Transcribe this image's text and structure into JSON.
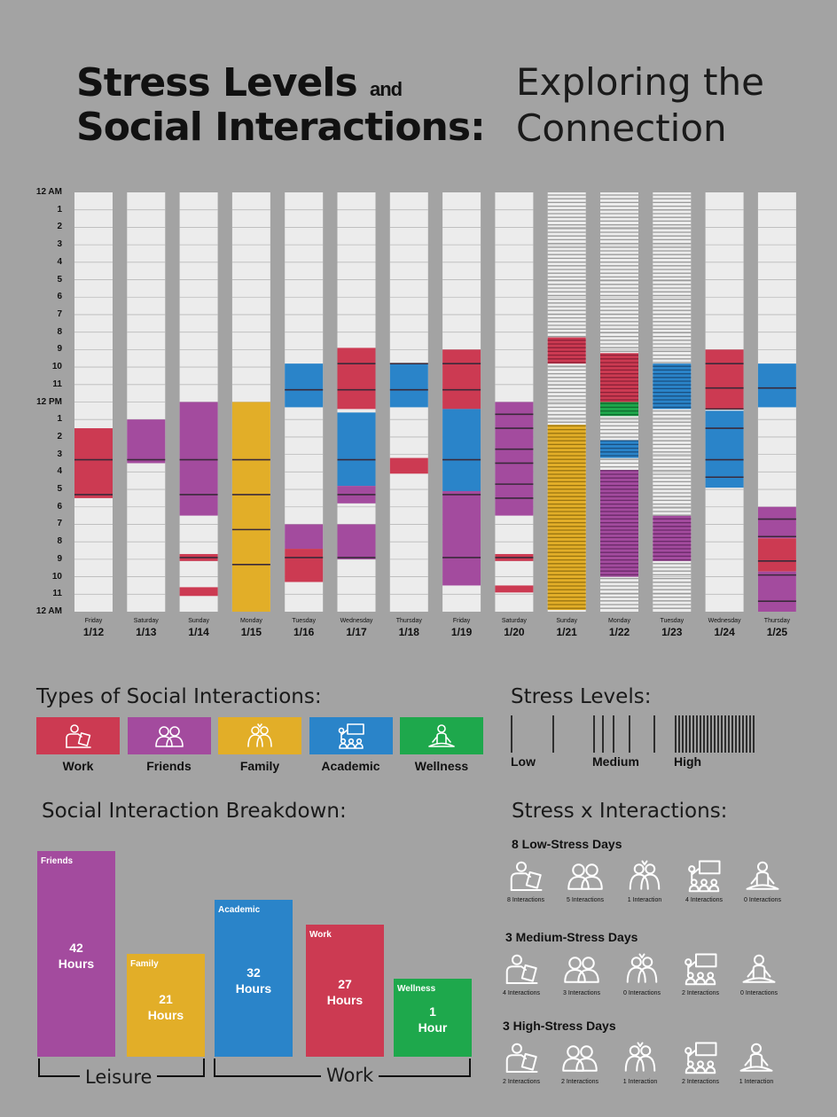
{
  "title": {
    "line1": "Stress Levels",
    "and": "and",
    "line2": "Social Interactions:",
    "sub1": "Exploring the",
    "sub2": "Connection"
  },
  "colors": {
    "work": "#cc3a52",
    "friends": "#a34b9e",
    "family": "#e2ae28",
    "academic": "#2a84c9",
    "wellness": "#1ea84c",
    "empty": "#ececec"
  },
  "chart_data": [
    {
      "type": "timeline",
      "y_tick_labels": [
        "12 AM",
        "1",
        "2",
        "3",
        "4",
        "5",
        "6",
        "7",
        "8",
        "9",
        "10",
        "11",
        "12 PM",
        "1",
        "2",
        "3",
        "4",
        "5",
        "6",
        "7",
        "8",
        "9",
        "10",
        "11",
        "12 AM"
      ],
      "days": [
        {
          "name": "Friday",
          "date": "1/12",
          "stress": "low",
          "segments": [
            {
              "type": "work",
              "start": 13.5,
              "end": 17.5
            }
          ],
          "lines": [
            15.3,
            17.3
          ]
        },
        {
          "name": "Saturday",
          "date": "1/13",
          "stress": "low",
          "segments": [
            {
              "type": "friends",
              "start": 13.0,
              "end": 15.5
            }
          ],
          "lines": [
            15.3
          ]
        },
        {
          "name": "Sunday",
          "date": "1/14",
          "stress": "low",
          "segments": [
            {
              "type": "friends",
              "start": 12.0,
              "end": 18.5
            },
            {
              "type": "work",
              "start": 20.7,
              "end": 21.1
            },
            {
              "type": "work",
              "start": 22.6,
              "end": 23.1
            }
          ],
          "lines": [
            15.3,
            17.3,
            20.9
          ]
        },
        {
          "name": "Monday",
          "date": "1/15",
          "stress": "low",
          "segments": [
            {
              "type": "family",
              "start": 12.0,
              "end": 24.0
            }
          ],
          "lines": [
            15.3,
            17.3,
            19.3,
            21.3
          ]
        },
        {
          "name": "Tuesday",
          "date": "1/16",
          "stress": "low",
          "segments": [
            {
              "type": "academic",
              "start": 9.8,
              "end": 12.3
            },
            {
              "type": "friends",
              "start": 19.0,
              "end": 20.4
            },
            {
              "type": "work",
              "start": 20.4,
              "end": 22.3
            }
          ],
          "lines": [
            11.3,
            20.9
          ]
        },
        {
          "name": "Wednesday",
          "date": "1/17",
          "stress": "low",
          "segments": [
            {
              "type": "work",
              "start": 8.9,
              "end": 12.4
            },
            {
              "type": "academic",
              "start": 12.6,
              "end": 16.8
            },
            {
              "type": "friends",
              "start": 16.8,
              "end": 17.8
            },
            {
              "type": "friends",
              "start": 19.0,
              "end": 21.0
            }
          ],
          "lines": [
            9.8,
            11.3,
            15.3,
            17.3,
            20.9
          ]
        },
        {
          "name": "Thursday",
          "date": "1/18",
          "stress": "low",
          "segments": [
            {
              "type": "academic",
              "start": 9.8,
              "end": 12.3
            },
            {
              "type": "work",
              "start": 15.2,
              "end": 16.1
            }
          ],
          "lines": [
            9.8,
            11.3
          ]
        },
        {
          "name": "Friday",
          "date": "1/19",
          "stress": "low",
          "segments": [
            {
              "type": "work",
              "start": 9.0,
              "end": 12.4
            },
            {
              "type": "academic",
              "start": 12.4,
              "end": 17.1
            },
            {
              "type": "friends",
              "start": 17.1,
              "end": 22.5
            }
          ],
          "lines": [
            9.8,
            11.3,
            15.3,
            17.3,
            20.9
          ]
        },
        {
          "name": "Saturday",
          "date": "1/20",
          "stress": "medium",
          "segments": [
            {
              "type": "friends",
              "start": 12.0,
              "end": 18.5
            },
            {
              "type": "work",
              "start": 20.7,
              "end": 21.1
            },
            {
              "type": "work",
              "start": 22.5,
              "end": 22.9
            }
          ],
          "lines": [
            12.7,
            13.5,
            14.7,
            15.5,
            16.7,
            17.5,
            20.9
          ]
        },
        {
          "name": "Sunday",
          "date": "1/21",
          "stress": "high",
          "segments": [
            {
              "type": "work",
              "start": 8.3,
              "end": 9.8
            },
            {
              "type": "family",
              "start": 13.3,
              "end": 23.9
            }
          ],
          "lines": []
        },
        {
          "name": "Monday",
          "date": "1/22",
          "stress": "high",
          "segments": [
            {
              "type": "work",
              "start": 9.2,
              "end": 12.0
            },
            {
              "type": "wellness",
              "start": 12.0,
              "end": 12.8
            },
            {
              "type": "academic",
              "start": 14.2,
              "end": 15.2
            },
            {
              "type": "friends",
              "start": 15.9,
              "end": 22.0
            }
          ],
          "lines": []
        },
        {
          "name": "Tuesday",
          "date": "1/23",
          "stress": "high",
          "segments": [
            {
              "type": "academic",
              "start": 9.8,
              "end": 12.4
            },
            {
              "type": "friends",
              "start": 18.5,
              "end": 21.1
            }
          ],
          "lines": []
        },
        {
          "name": "Wednesday",
          "date": "1/24",
          "stress": "medium",
          "segments": [
            {
              "type": "work",
              "start": 9.0,
              "end": 12.4
            },
            {
              "type": "academic",
              "start": 12.5,
              "end": 16.9
            }
          ],
          "lines": [
            9.8,
            11.2,
            12.4,
            13.5,
            15.3,
            16.3
          ]
        },
        {
          "name": "Thursday",
          "date": "1/25",
          "stress": "medium",
          "segments": [
            {
              "type": "academic",
              "start": 9.8,
              "end": 12.3
            },
            {
              "type": "friends",
              "start": 18.0,
              "end": 19.8
            },
            {
              "type": "work",
              "start": 19.8,
              "end": 21.7
            },
            {
              "type": "friends",
              "start": 21.7,
              "end": 24.0
            }
          ],
          "lines": [
            11.2,
            18.7,
            19.7,
            21.1,
            21.9,
            23.4
          ]
        }
      ]
    },
    {
      "type": "bar",
      "categories": [
        "Friends",
        "Family",
        "Academic",
        "Work",
        "Wellness"
      ],
      "values": [
        42,
        21,
        32,
        27,
        1
      ],
      "value_labels": [
        "42",
        "21",
        "32",
        "27",
        "1"
      ],
      "unit_labels": [
        "Hours",
        "Hours",
        "Hours",
        "Hours",
        "Hour"
      ],
      "bar_colors": [
        "#a34b9e",
        "#e2ae28",
        "#2a84c9",
        "#cc3a52",
        "#1ea84c"
      ],
      "groups": [
        "Leisure",
        "Work"
      ]
    },
    {
      "type": "table",
      "groups": [
        {
          "title": "8 Low-Stress Days",
          "counts": [
            "8 Interactions",
            "5 Interactions",
            "1 Interaction",
            "4 Interactions",
            "0 Interactions"
          ]
        },
        {
          "title": "3 Medium-Stress Days",
          "counts": [
            "4 Interactions",
            "3 Interactions",
            "0 Interactions",
            "2 Interactions",
            "0 Interactions"
          ]
        },
        {
          "title": "3 High-Stress Days",
          "counts": [
            "2 Interactions",
            "2 Interactions",
            "1 Interaction",
            "2 Interactions",
            "1 Interaction"
          ]
        }
      ]
    }
  ],
  "legend": {
    "heading": "Types of Social Interactions:",
    "items": [
      {
        "label": "Work",
        "icon": "presenter-icon",
        "color": "#cc3a52"
      },
      {
        "label": "Friends",
        "icon": "two-people-icon",
        "color": "#a34b9e"
      },
      {
        "label": "Family",
        "icon": "couple-icon",
        "color": "#e2ae28"
      },
      {
        "label": "Academic",
        "icon": "classroom-icon",
        "color": "#2a84c9"
      },
      {
        "label": "Wellness",
        "icon": "meditation-icon",
        "color": "#1ea84c"
      }
    ]
  },
  "stress_legend": {
    "heading": "Stress Levels:",
    "low": "Low",
    "medium": "Medium",
    "high": "High"
  },
  "breakdown": {
    "heading": "Social Interaction Breakdown:",
    "leisure": "Leisure",
    "work": "Work"
  },
  "stress_x": {
    "heading": "Stress x Interactions:"
  }
}
